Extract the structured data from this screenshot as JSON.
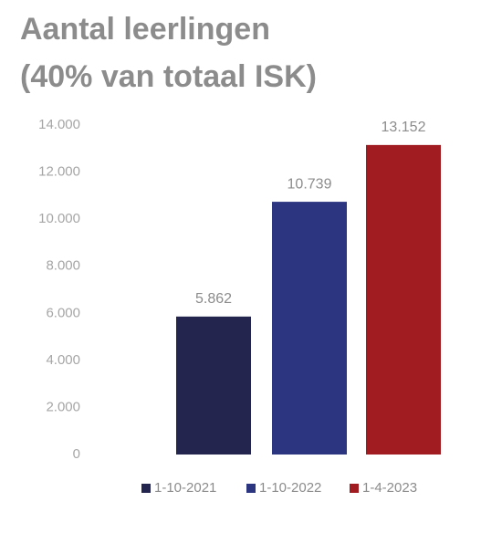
{
  "chart_data": {
    "type": "bar",
    "title": [
      "Aantal leerlingen",
      "(40% van totaal ISK)"
    ],
    "series": [
      {
        "name": "1-10-2021",
        "color": "#23254f",
        "values": [
          5862
        ],
        "value_labels": [
          "5.862"
        ]
      },
      {
        "name": "1-10-2022",
        "color": "#2c3680",
        "values": [
          10739
        ],
        "value_labels": [
          "10.739"
        ]
      },
      {
        "name": "1-4-2023",
        "color": "#a11c20",
        "values": [
          13152
        ],
        "value_labels": [
          "13.152"
        ]
      }
    ],
    "ylim": [
      0,
      14000
    ],
    "yticks": [
      0,
      {
        "value": 2000,
        "label": "2.000"
      },
      {
        "value": 4000,
        "label": "4.000"
      },
      {
        "value": 6000,
        "label": "6.000"
      },
      {
        "value": 8000,
        "label": "8.000"
      },
      {
        "value": 10000,
        "label": "10.000"
      },
      {
        "value": 12000,
        "label": "12.000"
      },
      {
        "value": 14000,
        "label": "14.000"
      }
    ],
    "grid": false,
    "legend": "bottom"
  }
}
